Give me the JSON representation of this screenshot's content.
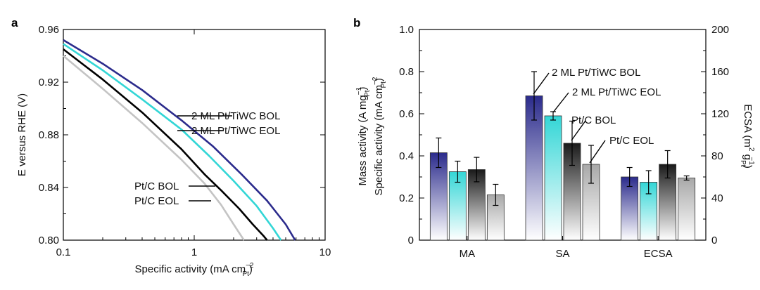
{
  "chart_data": [
    {
      "panel": "a",
      "type": "line",
      "xscale": "log",
      "xlabel_main": "Specific activity (mA cm",
      "xlabel_sup": "−2",
      "xlabel_sub": "Pt",
      "xlabel_tail": ")",
      "ylabel": "E versus RHE (V)",
      "xlim": [
        0.1,
        10
      ],
      "ylim": [
        0.8,
        0.96
      ],
      "xticks": [
        0.1,
        1,
        10
      ],
      "xtick_labels": [
        "0.1",
        "1",
        "10"
      ],
      "yticks": [
        0.8,
        0.84,
        0.88,
        0.92,
        0.96
      ],
      "ytick_labels": [
        "0.80",
        "0.84",
        "0.88",
        "0.92",
        "0.96"
      ],
      "series": [
        {
          "name": "2 ML Pt/TiWC BOL",
          "color": "#2b2b8c",
          "x": [
            0.1,
            0.2,
            0.4,
            0.8,
            1.4,
            2.3,
            3.6,
            5.0,
            5.9
          ],
          "y": [
            0.952,
            0.934,
            0.914,
            0.891,
            0.871,
            0.85,
            0.83,
            0.812,
            0.8
          ]
        },
        {
          "name": "2 ML Pt/TiWC EOL",
          "color": "#33d6d6",
          "x": [
            0.1,
            0.2,
            0.4,
            0.8,
            1.3,
            2.0,
            3.0,
            4.0,
            4.6
          ],
          "y": [
            0.949,
            0.929,
            0.907,
            0.884,
            0.864,
            0.845,
            0.826,
            0.809,
            0.8
          ]
        },
        {
          "name": "Pt/C BOL",
          "color": "#000000",
          "x": [
            0.1,
            0.2,
            0.4,
            0.8,
            1.2,
            1.6,
            2.2,
            2.8,
            3.4,
            3.6
          ],
          "y": [
            0.945,
            0.922,
            0.897,
            0.869,
            0.85,
            0.838,
            0.824,
            0.812,
            0.803,
            0.8
          ]
        },
        {
          "name": "Pt/C EOL",
          "color": "#c4c4c4",
          "x": [
            0.1,
            0.2,
            0.4,
            0.8,
            1.2,
            1.6,
            2.0,
            2.4
          ],
          "y": [
            0.94,
            0.915,
            0.889,
            0.861,
            0.843,
            0.827,
            0.812,
            0.8
          ]
        }
      ],
      "annotations": [
        "2 ML Pt/TiWC BOL",
        "2 ML Pt/TiWC EOL",
        "Pt/C BOL",
        "Pt/C EOL"
      ]
    },
    {
      "panel": "b",
      "type": "bar",
      "categories": [
        "MA",
        "SA",
        "ECSA"
      ],
      "ylabel_mass_main": "Mass activity (A mg",
      "ylabel_mass_sup": "−1",
      "ylabel_mass_sub": "Pt",
      "ylabel_mass_tail": ")",
      "ylabel_spec_main": "Specific activity (mA cm",
      "ylabel_spec_sup": "−2",
      "ylabel_spec_sub": "Pt",
      "ylabel_spec_tail": ")",
      "ylabel_right_main": "ECSA (m",
      "ylabel_right_sup": "2",
      "ylabel_right_mid": " g",
      "ylabel_right_sub": "Pt",
      "ylabel_right_sup2": "−1",
      "ylabel_right_tail": ")",
      "ylim": [
        0,
        1.0
      ],
      "yticks": [
        0,
        0.2,
        0.4,
        0.6,
        0.8,
        1.0
      ],
      "ytick_labels": [
        "0",
        "0.2",
        "0.4",
        "0.6",
        "0.8",
        "1.0"
      ],
      "ylim_right": [
        0,
        200
      ],
      "yticks_right": [
        0,
        40,
        80,
        120,
        160,
        200
      ],
      "ytick_labels_right": [
        "0",
        "40",
        "80",
        "120",
        "160",
        "200"
      ],
      "series": [
        {
          "name": "2 ML Pt/TiWC BOL",
          "color": "#2b2b8c",
          "values": [
            0.415,
            0.685,
            0.3
          ],
          "errors": [
            0.07,
            0.115,
            0.045
          ]
        },
        {
          "name": "2 ML Pt/TiWC EOL",
          "color": "#33d6d6",
          "values": [
            0.325,
            0.59,
            0.275
          ],
          "errors": [
            0.05,
            0.02,
            0.055
          ]
        },
        {
          "name": "Pt/C BOL",
          "color": "#1a1a1a",
          "values": [
            0.335,
            0.46,
            0.36
          ],
          "errors": [
            0.058,
            0.105,
            0.065
          ]
        },
        {
          "name": "Pt/C EOL",
          "color": "#a8a8a8",
          "values": [
            0.215,
            0.36,
            0.295
          ],
          "errors": [
            0.05,
            0.09,
            0.01
          ]
        }
      ],
      "annotations": [
        "2 ML Pt/TiWC BOL",
        "2 ML Pt/TiWC EOL",
        "Pt/C BOL",
        "Pt/C EOL"
      ]
    }
  ]
}
